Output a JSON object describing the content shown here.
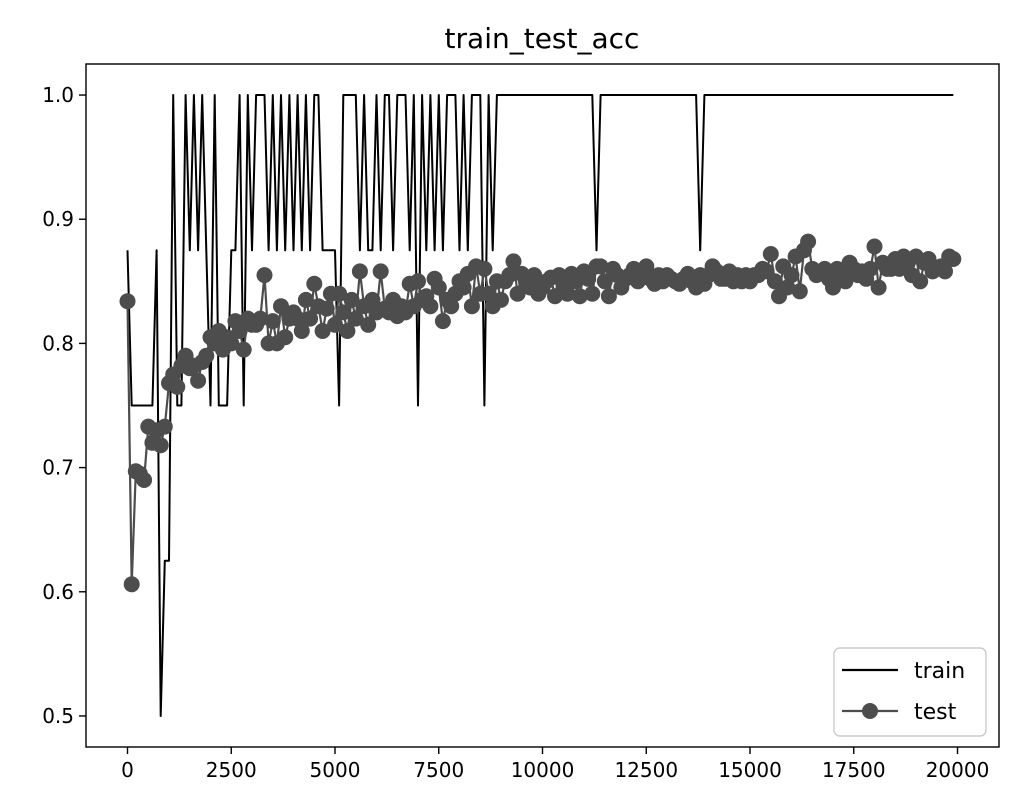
{
  "chart_data": {
    "type": "line",
    "title": "train_test_acc",
    "xlabel": "",
    "ylabel": "",
    "xlim": [
      -1000,
      21000
    ],
    "ylim": [
      0.475,
      1.025
    ],
    "xticks": [
      0,
      2500,
      5000,
      7500,
      10000,
      12500,
      15000,
      17500,
      20000
    ],
    "yticks": [
      0.5,
      0.6,
      0.7,
      0.8,
      0.9,
      1.0
    ],
    "xtick_labels": [
      "0",
      "2500",
      "5000",
      "7500",
      "10000",
      "12500",
      "15000",
      "17500",
      "20000"
    ],
    "ytick_labels": [
      "0.5",
      "0.6",
      "0.7",
      "0.8",
      "0.9",
      "1.0"
    ],
    "grid": false,
    "legend_position": "lower-right",
    "colors": {
      "train": "#000000",
      "test": "#4d4d4d"
    },
    "series": [
      {
        "name": "train",
        "style": "line",
        "x": [
          0,
          100,
          200,
          300,
          400,
          500,
          600,
          700,
          800,
          900,
          1000,
          1100,
          1200,
          1300,
          1400,
          1500,
          1600,
          1700,
          1800,
          1900,
          2000,
          2100,
          2200,
          2300,
          2400,
          2500,
          2600,
          2700,
          2800,
          2900,
          3000,
          3100,
          3200,
          3300,
          3400,
          3500,
          3600,
          3700,
          3800,
          3900,
          4000,
          4100,
          4200,
          4300,
          4400,
          4500,
          4600,
          4700,
          4800,
          4900,
          5000,
          5100,
          5200,
          5300,
          5400,
          5500,
          5600,
          5700,
          5800,
          5900,
          6000,
          6100,
          6200,
          6300,
          6400,
          6500,
          6600,
          6700,
          6800,
          6900,
          7000,
          7100,
          7200,
          7300,
          7400,
          7500,
          7600,
          7700,
          7800,
          7900,
          8000,
          8100,
          8200,
          8300,
          8400,
          8500,
          8600,
          8700,
          8800,
          8900,
          9000,
          9500,
          10000,
          10500,
          11000,
          11200,
          11300,
          11400,
          11500,
          12000,
          12500,
          13000,
          13500,
          13700,
          13800,
          13900,
          14000,
          14500,
          15000,
          15500,
          16000,
          16500,
          17000,
          17500,
          18000,
          18500,
          19000,
          19500,
          19900
        ],
        "y": [
          0.875,
          0.75,
          0.75,
          0.75,
          0.75,
          0.75,
          0.75,
          0.875,
          0.5,
          0.625,
          0.625,
          1.0,
          0.75,
          0.75,
          1.0,
          0.875,
          1.0,
          0.875,
          1.0,
          0.875,
          0.75,
          1.0,
          0.75,
          0.75,
          0.75,
          0.875,
          0.875,
          1.0,
          0.75,
          1.0,
          0.875,
          1.0,
          1.0,
          1.0,
          0.875,
          1.0,
          0.875,
          1.0,
          0.875,
          1.0,
          0.875,
          1.0,
          0.875,
          1.0,
          0.875,
          1.0,
          1.0,
          0.875,
          0.875,
          0.875,
          0.875,
          0.75,
          1.0,
          1.0,
          1.0,
          1.0,
          0.875,
          1.0,
          0.875,
          0.875,
          1.0,
          0.875,
          1.0,
          1.0,
          0.875,
          1.0,
          1.0,
          1.0,
          0.875,
          1.0,
          0.75,
          1.0,
          0.875,
          1.0,
          0.875,
          1.0,
          0.875,
          1.0,
          1.0,
          1.0,
          0.875,
          1.0,
          0.875,
          1.0,
          1.0,
          1.0,
          0.75,
          1.0,
          0.875,
          1.0,
          1.0,
          1.0,
          1.0,
          1.0,
          1.0,
          1.0,
          0.875,
          1.0,
          1.0,
          1.0,
          1.0,
          1.0,
          1.0,
          1.0,
          0.875,
          1.0,
          1.0,
          1.0,
          1.0,
          1.0,
          1.0,
          1.0,
          1.0,
          1.0,
          1.0,
          1.0,
          1.0,
          1.0,
          1.0
        ]
      },
      {
        "name": "test",
        "style": "line-marker",
        "x": [
          0,
          100,
          200,
          300,
          400,
          500,
          600,
          700,
          800,
          900,
          1000,
          1100,
          1200,
          1300,
          1400,
          1500,
          1600,
          1700,
          1800,
          1900,
          2000,
          2100,
          2200,
          2300,
          2400,
          2500,
          2600,
          2700,
          2800,
          2900,
          3000,
          3100,
          3200,
          3300,
          3400,
          3500,
          3600,
          3700,
          3800,
          3900,
          4000,
          4100,
          4200,
          4300,
          4400,
          4500,
          4600,
          4700,
          4800,
          4900,
          5000,
          5100,
          5200,
          5300,
          5400,
          5500,
          5600,
          5700,
          5800,
          5900,
          6000,
          6100,
          6200,
          6300,
          6400,
          6500,
          6600,
          6700,
          6800,
          6900,
          7000,
          7100,
          7200,
          7300,
          7400,
          7500,
          7600,
          7700,
          7800,
          7900,
          8000,
          8100,
          8200,
          8300,
          8400,
          8500,
          8600,
          8700,
          8800,
          8900,
          9000,
          9100,
          9200,
          9300,
          9400,
          9500,
          9600,
          9700,
          9800,
          9900,
          10000,
          10100,
          10200,
          10300,
          10400,
          10500,
          10600,
          10700,
          10800,
          10900,
          11000,
          11100,
          11200,
          11300,
          11400,
          11500,
          11600,
          11700,
          11800,
          11900,
          12000,
          12100,
          12200,
          12300,
          12400,
          12500,
          12600,
          12700,
          12800,
          12900,
          13000,
          13100,
          13200,
          13300,
          13400,
          13500,
          13600,
          13700,
          13800,
          13900,
          14000,
          14100,
          14200,
          14300,
          14400,
          14500,
          14600,
          14700,
          14800,
          14900,
          15000,
          15100,
          15200,
          15300,
          15400,
          15500,
          15600,
          15700,
          15800,
          15900,
          16000,
          16100,
          16200,
          16300,
          16400,
          16500,
          16600,
          16700,
          16800,
          16900,
          17000,
          17100,
          17200,
          17300,
          17400,
          17500,
          17600,
          17700,
          17800,
          17900,
          18000,
          18100,
          18200,
          18300,
          18400,
          18500,
          18600,
          18700,
          18800,
          18900,
          19000,
          19100,
          19200,
          19300,
          19400,
          19500,
          19600,
          19700,
          19800,
          19900
        ],
        "y": [
          0.834,
          0.606,
          0.697,
          0.695,
          0.69,
          0.733,
          0.72,
          0.73,
          0.718,
          0.733,
          0.768,
          0.775,
          0.765,
          0.782,
          0.79,
          0.78,
          0.782,
          0.77,
          0.785,
          0.79,
          0.805,
          0.8,
          0.81,
          0.795,
          0.805,
          0.8,
          0.818,
          0.81,
          0.795,
          0.82,
          0.815,
          0.815,
          0.82,
          0.855,
          0.8,
          0.818,
          0.8,
          0.83,
          0.805,
          0.82,
          0.825,
          0.82,
          0.81,
          0.835,
          0.82,
          0.848,
          0.83,
          0.81,
          0.828,
          0.84,
          0.815,
          0.84,
          0.825,
          0.81,
          0.835,
          0.82,
          0.858,
          0.83,
          0.815,
          0.835,
          0.825,
          0.858,
          0.828,
          0.825,
          0.835,
          0.822,
          0.83,
          0.825,
          0.848,
          0.83,
          0.85,
          0.835,
          0.838,
          0.83,
          0.852,
          0.845,
          0.818,
          0.835,
          0.83,
          0.84,
          0.85,
          0.845,
          0.856,
          0.83,
          0.862,
          0.84,
          0.86,
          0.84,
          0.83,
          0.85,
          0.835,
          0.85,
          0.855,
          0.866,
          0.84,
          0.856,
          0.85,
          0.845,
          0.855,
          0.84,
          0.845,
          0.85,
          0.853,
          0.838,
          0.855,
          0.848,
          0.84,
          0.856,
          0.85,
          0.838,
          0.858,
          0.852,
          0.84,
          0.862,
          0.862,
          0.85,
          0.838,
          0.86,
          0.855,
          0.845,
          0.852,
          0.855,
          0.86,
          0.85,
          0.855,
          0.862,
          0.852,
          0.848,
          0.855,
          0.85,
          0.855,
          0.852,
          0.85,
          0.848,
          0.852,
          0.856,
          0.85,
          0.845,
          0.855,
          0.848,
          0.855,
          0.862,
          0.858,
          0.852,
          0.852,
          0.858,
          0.85,
          0.855,
          0.85,
          0.855,
          0.85,
          0.855,
          0.855,
          0.86,
          0.858,
          0.872,
          0.85,
          0.838,
          0.862,
          0.845,
          0.855,
          0.87,
          0.842,
          0.875,
          0.882,
          0.86,
          0.855,
          0.858,
          0.86,
          0.852,
          0.845,
          0.86,
          0.855,
          0.85,
          0.865,
          0.86,
          0.855,
          0.858,
          0.852,
          0.86,
          0.878,
          0.845,
          0.865,
          0.86,
          0.86,
          0.868,
          0.86,
          0.87,
          0.865,
          0.855,
          0.87,
          0.85,
          0.865,
          0.868,
          0.858,
          0.86,
          0.862,
          0.858,
          0.87,
          0.868
        ]
      }
    ]
  }
}
